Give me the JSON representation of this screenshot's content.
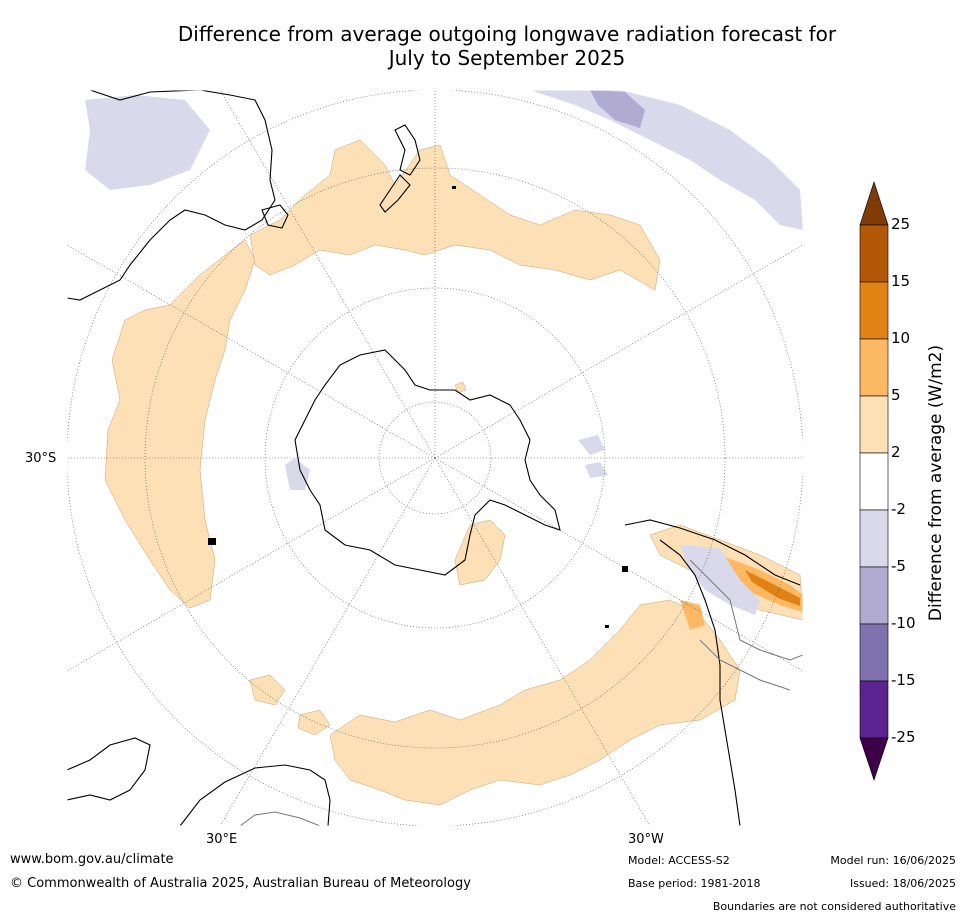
{
  "title_line1": "Difference from average outgoing longwave radiation forecast for",
  "title_line2": "July to September 2025",
  "map": {
    "projection": "south-polar-stereographic",
    "lat_labels": [
      {
        "text": "30°S"
      }
    ],
    "lon_labels": [
      {
        "text": "30°E"
      },
      {
        "text": "30°W"
      }
    ]
  },
  "colorbar": {
    "title": "Difference from average (W/m2)",
    "extend": "both",
    "levels": [
      -25,
      -15,
      -10,
      -5,
      -2,
      2,
      5,
      10,
      15,
      25
    ],
    "tick_labels": [
      "25",
      "15",
      "10",
      "5",
      "2",
      "-2",
      "-5",
      "-10",
      "-15",
      "-25"
    ],
    "colors": {
      "below_-25": "#3f004a",
      "-25_to_-15": "#5b2290",
      "-15_to_-10": "#8072ae",
      "-10_to_-5": "#b1abd2",
      "-5_to_-2": "#d9d9eb",
      "-2_to_2": "#ffffff",
      "2_to_5": "#fde0b5",
      "5_to_10": "#fdb863",
      "10_to_15": "#e08214",
      "15_to_25": "#b35806",
      "above_25": "#7f3b08"
    }
  },
  "footer": {
    "website": "www.bom.gov.au/climate",
    "copyright": "© Commonwealth of Australia 2025, Australian Bureau of Meteorology",
    "model": "Model: ACCESS-S2",
    "base_period": "Base period: 1981-2018",
    "model_run": "Model run: 16/06/2025",
    "issued": "Issued: 18/06/2025",
    "disclaimer": "Boundaries are not considered authoritative"
  }
}
